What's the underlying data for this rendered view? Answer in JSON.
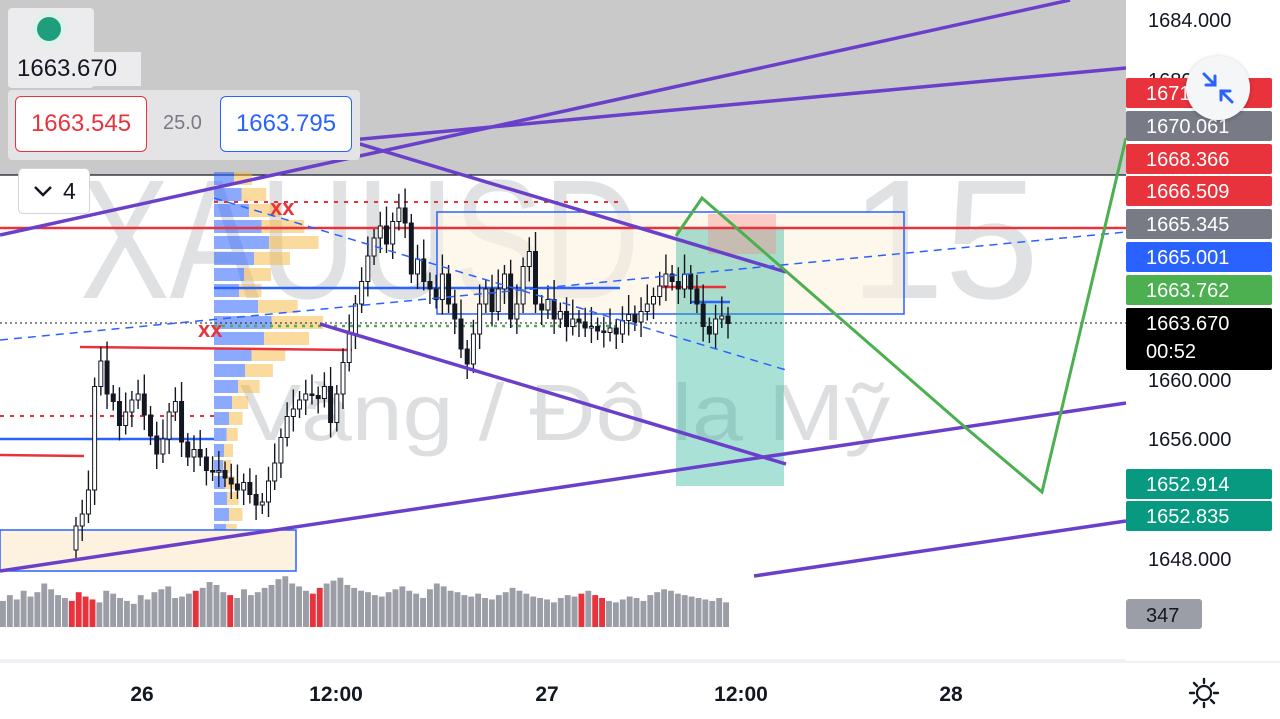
{
  "header": {
    "last_price": "1663.670",
    "bid_price": "1663.545",
    "spread": "25.0",
    "ask_price": "1663.795",
    "indicator_count": "4"
  },
  "watermark": {
    "symbol": "XAUUSD",
    "interval": "15",
    "description": "Vàng / Đô la Mỹ"
  },
  "price_axis": {
    "ticks": [
      "1684.000",
      "1680.000",
      "1660.000",
      "1656.000",
      "1648.000"
    ],
    "tags": [
      {
        "label": "1671.597",
        "color": "#e8333d",
        "value": 1671.597
      },
      {
        "label": "1670.061",
        "color": "#787b86",
        "value": 1670.061
      },
      {
        "label": "1668.366",
        "color": "#e8333d",
        "value": 1668.366
      },
      {
        "label": "1666.509",
        "color": "#e8333d",
        "value": 1666.509
      },
      {
        "label": "1665.345",
        "color": "#787b86",
        "value": 1665.345
      },
      {
        "label": "1665.001",
        "color": "#2962ff",
        "value": 1665.001
      },
      {
        "label": "1663.762",
        "color": "#4caf50",
        "value": 1663.762
      },
      {
        "label": "1663.670",
        "color": "#000000",
        "value": 1663.67
      },
      {
        "label": "1652.914",
        "color": "#089981",
        "value": 1652.914
      },
      {
        "label": "1652.835",
        "color": "#089981",
        "value": 1652.835
      }
    ],
    "countdown": "00:52",
    "volume_tag": "347"
  },
  "time_axis": {
    "labels": [
      "26",
      "12:00",
      "27",
      "12:00",
      "28"
    ]
  },
  "colors": {
    "up": "#131722",
    "down": "#131722",
    "volume": "#9b9ea6",
    "volume_highlight": "#e8333d",
    "channel": "#6a3fc9",
    "projection": "#4caf50"
  },
  "chart_data": {
    "type": "candlestick",
    "symbol": "XAUUSD",
    "interval": "15",
    "price_range": [
      1645.5,
      1685.5
    ],
    "last_price": 1663.67,
    "series": [
      {
        "name": "close",
        "values": [
          1650.2,
          1651.0,
          1652.6,
          1659.5,
          1661.2,
          1659.0,
          1658.5,
          1656.9,
          1657.8,
          1658.6,
          1659.0,
          1657.6,
          1656.2,
          1655.0,
          1656.0,
          1657.8,
          1658.5,
          1655.8,
          1654.8,
          1655.3,
          1654.8,
          1653.9,
          1653.8,
          1653.9,
          1653.4,
          1653.0,
          1652.6,
          1653.1,
          1652.3,
          1651.6,
          1651.8,
          1653.2,
          1654.4,
          1656.1,
          1657.5,
          1658.0,
          1658.6,
          1659.0,
          1658.9,
          1658.7,
          1659.5,
          1657.1,
          1659.0,
          1661.1,
          1663.0,
          1665.0,
          1666.5,
          1668.2,
          1669.4,
          1670.2,
          1669.0,
          1670.5,
          1671.4,
          1670.4,
          1667.0,
          1668.0,
          1666.5,
          1666.0,
          1665.3,
          1667.0,
          1665.0,
          1664.0,
          1662.0,
          1661.0,
          1663.0,
          1665.0,
          1666.0,
          1664.5,
          1666.0,
          1667.0,
          1664.0,
          1665.0,
          1667.5,
          1668.5,
          1665.0,
          1664.6,
          1665.3,
          1664.0,
          1664.5,
          1663.5,
          1664.0,
          1663.8,
          1663.4,
          1663.5,
          1663.2,
          1663.1,
          1663.4,
          1663.0,
          1663.9,
          1664.3,
          1663.8,
          1664.5,
          1665.0,
          1665.5,
          1666.2,
          1667.0,
          1666.5,
          1666.0,
          1667.0,
          1666.0,
          1665.0,
          1663.5,
          1663.0,
          1664.0,
          1664.2,
          1663.7
        ]
      }
    ],
    "volume": [
      18,
      22,
      19,
      25,
      21,
      24,
      30,
      26,
      22,
      20,
      18,
      24,
      21,
      19,
      17,
      25,
      23,
      20,
      18,
      16,
      22,
      19,
      24,
      26,
      28,
      20,
      21,
      23,
      25,
      27,
      31,
      29,
      24,
      22,
      20,
      26,
      22,
      24,
      27,
      29,
      33,
      35,
      30,
      28,
      25,
      23,
      27,
      30,
      32,
      34,
      29,
      27,
      25,
      24,
      22,
      21,
      24,
      26,
      28,
      25,
      23,
      20,
      26,
      30,
      28,
      25,
      24,
      22,
      21,
      23,
      20,
      19,
      22,
      24,
      27,
      25,
      23,
      21,
      20,
      19,
      17,
      20,
      22,
      21,
      23,
      25,
      22,
      20,
      18,
      17,
      19,
      21,
      20,
      18,
      22,
      24,
      26,
      25,
      23,
      22,
      21,
      20,
      19,
      18,
      20,
      17
    ],
    "time_labels": [
      "26",
      "12:00",
      "27",
      "12:00",
      "28"
    ],
    "price_ticks": [
      1684,
      1680,
      1660,
      1656,
      1648
    ]
  }
}
